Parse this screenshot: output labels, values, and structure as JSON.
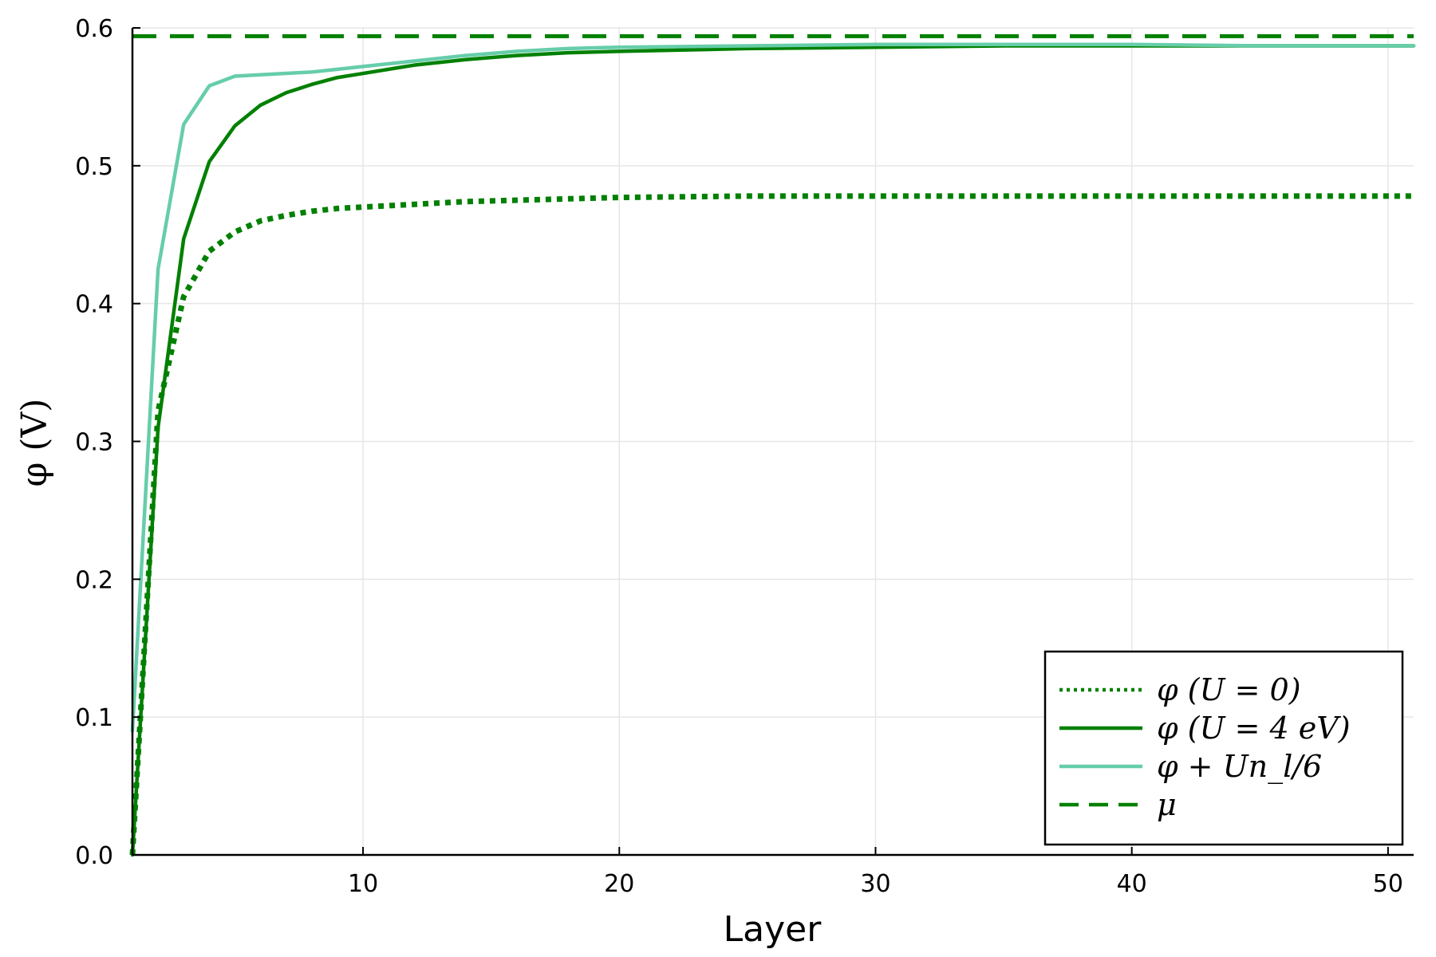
{
  "chart_data": {
    "type": "line",
    "xlabel": "Layer",
    "ylabel": "φ (V)",
    "xlim": [
      1,
      51
    ],
    "ylim": [
      0.0,
      0.6
    ],
    "xticks": [
      10,
      20,
      30,
      40,
      50
    ],
    "yticks": [
      0.0,
      0.1,
      0.2,
      0.3,
      0.4,
      0.5,
      0.6
    ],
    "xtick_labels": [
      "10",
      "20",
      "30",
      "40",
      "50"
    ],
    "ytick_labels": [
      "0.0",
      "0.1",
      "0.2",
      "0.3",
      "0.4",
      "0.5",
      "0.6"
    ],
    "grid": true,
    "legend_position": "bottom-right",
    "series": [
      {
        "name": "φ (U = 0)",
        "color": "#008000",
        "style": "dotted",
        "x": [
          1,
          2,
          3,
          4,
          5,
          6,
          7,
          8,
          9,
          10,
          12,
          14,
          16,
          18,
          20,
          25,
          30,
          35,
          40,
          45,
          51
        ],
        "values": [
          0.0,
          0.322,
          0.405,
          0.438,
          0.452,
          0.46,
          0.464,
          0.467,
          0.469,
          0.47,
          0.472,
          0.474,
          0.475,
          0.476,
          0.477,
          0.478,
          0.478,
          0.478,
          0.478,
          0.478,
          0.478
        ]
      },
      {
        "name": "φ (U = 4 eV)",
        "color": "#008000",
        "style": "solid",
        "x": [
          1,
          2,
          3,
          4,
          5,
          6,
          7,
          8,
          9,
          10,
          12,
          14,
          16,
          18,
          20,
          25,
          30,
          35,
          40,
          45,
          51
        ],
        "values": [
          0.0,
          0.31,
          0.447,
          0.503,
          0.529,
          0.544,
          0.553,
          0.559,
          0.564,
          0.567,
          0.573,
          0.577,
          0.58,
          0.582,
          0.583,
          0.585,
          0.586,
          0.587,
          0.587,
          0.587,
          0.587
        ]
      },
      {
        "name": "φ + Un_l/6",
        "color": "#66cdaa",
        "style": "solid",
        "x": [
          1,
          2,
          3,
          4,
          5,
          6,
          7,
          8,
          9,
          10,
          12,
          14,
          16,
          18,
          20,
          25,
          30,
          35,
          40,
          45,
          51
        ],
        "values": [
          0.09,
          0.425,
          0.53,
          0.558,
          0.565,
          0.566,
          0.567,
          0.568,
          0.57,
          0.572,
          0.576,
          0.58,
          0.583,
          0.585,
          0.586,
          0.587,
          0.588,
          0.588,
          0.588,
          0.587,
          0.587
        ]
      },
      {
        "name": "μ",
        "color": "#008000",
        "style": "dashed",
        "x": [
          1,
          51
        ],
        "values": [
          0.594,
          0.594
        ]
      }
    ]
  }
}
